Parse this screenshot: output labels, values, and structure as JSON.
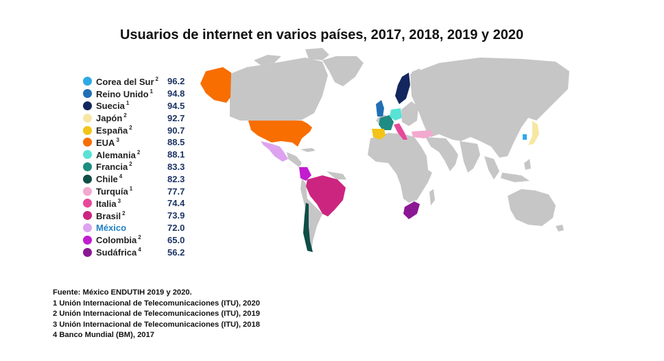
{
  "title": "Usuarios de internet en varios países, 2017, 2018, 2019 y 2020",
  "legend": [
    {
      "country": "Corea del Sur",
      "note": "2",
      "value": "96.2",
      "color": "#2ea9e6"
    },
    {
      "country": "Reino Unido",
      "note": "1",
      "value": "94.8",
      "color": "#1f6fb5"
    },
    {
      "country": "Suecia",
      "note": "1",
      "value": "94.5",
      "color": "#14265e"
    },
    {
      "country": "Japón",
      "note": "2",
      "value": "92.7",
      "color": "#f7e7a2"
    },
    {
      "country": "España",
      "note": "2",
      "value": "90.7",
      "color": "#f2c417"
    },
    {
      "country": "EUA",
      "note": "3",
      "value": "88.5",
      "color": "#f86e00"
    },
    {
      "country": "Alemania",
      "note": "2",
      "value": "88.1",
      "color": "#58e3d6"
    },
    {
      "country": "Francia",
      "note": "2",
      "value": "83.3",
      "color": "#1e8c82"
    },
    {
      "country": "Chile",
      "note": "4",
      "value": "82.3",
      "color": "#0f4d47"
    },
    {
      "country": "Turquía",
      "note": "1",
      "value": "77.7",
      "color": "#f2a9cf"
    },
    {
      "country": "Italia",
      "note": "3",
      "value": "74.4",
      "color": "#e8489a"
    },
    {
      "country": "Brasil",
      "note": "2",
      "value": "73.9",
      "color": "#cc2580"
    },
    {
      "country": "México",
      "note": "",
      "value": "72.0",
      "color": "#dda3f0",
      "highlight": true
    },
    {
      "country": "Colombia",
      "note": "2",
      "value": "65.0",
      "color": "#c21bd0"
    },
    {
      "country": "Sudáfrica",
      "note": "4",
      "value": "56.2",
      "color": "#8c1794"
    }
  ],
  "notes": [
    "Fuente: México ENDUTIH 2019 y 2020.",
    "1 Unión Internacional de Telecomunicaciones (ITU), 2020",
    "2 Unión Internacional de Telecomunicaciones (ITU), 2019",
    "3 Unión Internacional de Telecomunicaciones (ITU), 2018",
    "4 Banco Mundial (BM), 2017"
  ],
  "land_color": "#c6c6c6"
}
